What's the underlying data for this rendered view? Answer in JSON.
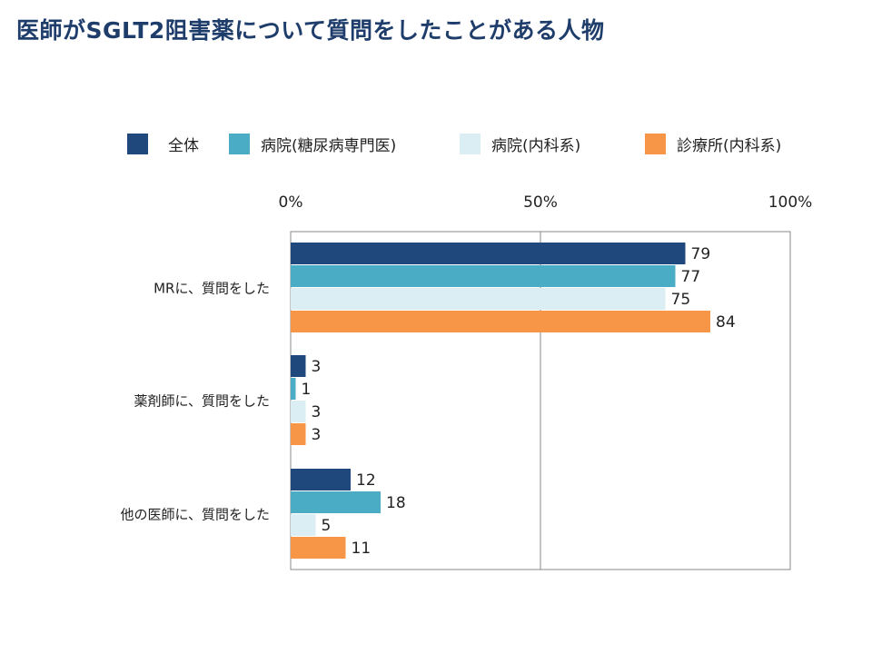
{
  "title": "医師がSGLT2阻害薬について質問をしたことがある人物",
  "chart_data": {
    "type": "bar",
    "orientation": "horizontal",
    "categories": [
      "MRに、質問をした",
      "薬剤師に、質問をした",
      "他の医師に、質問をした"
    ],
    "series": [
      {
        "name": "全体",
        "color": "#1f497d",
        "values": [
          79,
          3,
          12
        ]
      },
      {
        "name": "病院(糖尿病専門医)",
        "color": "#4bacc6",
        "values": [
          77,
          1,
          18
        ]
      },
      {
        "name": "病院(内科系)",
        "color": "#daeef3",
        "values": [
          75,
          3,
          5
        ]
      },
      {
        "name": "診療所(内科系)",
        "color": "#f79646",
        "values": [
          84,
          3,
          11
        ]
      }
    ],
    "xlim": [
      0,
      100
    ],
    "xticks": [
      "0%",
      "50%",
      "100%"
    ],
    "grid": true,
    "legend_position": "top"
  }
}
